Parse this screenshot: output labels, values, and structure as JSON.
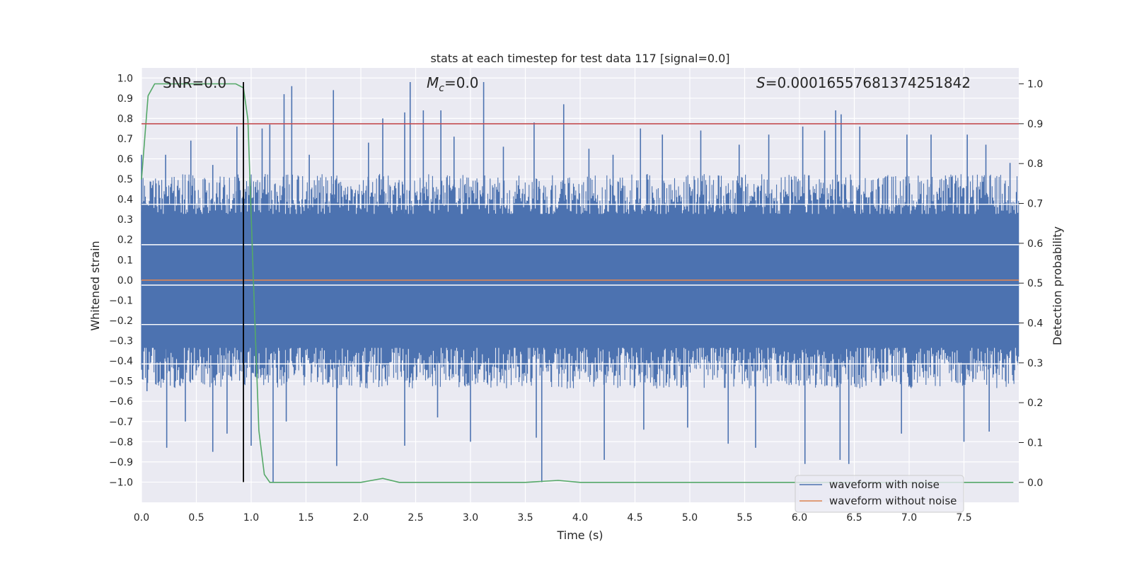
{
  "chart_data": {
    "type": "line",
    "title": "stats at each timestep for test data 117 [signal=0.0]",
    "xlabel": "Time (s)",
    "ylabel": "Whitened strain",
    "y2label": "Detection probability",
    "xlim": [
      0.0,
      8.0
    ],
    "ylim": [
      -1.1,
      1.05
    ],
    "y2lim": [
      -0.05,
      1.04
    ],
    "xticks": [
      0.0,
      0.5,
      1.0,
      1.5,
      2.0,
      2.5,
      3.0,
      3.5,
      4.0,
      4.5,
      5.0,
      5.5,
      6.0,
      6.5,
      7.0,
      7.5
    ],
    "xtick_labels": [
      "0.0",
      "0.5",
      "1.0",
      "1.5",
      "2.0",
      "2.5",
      "3.0",
      "3.5",
      "4.0",
      "4.5",
      "5.0",
      "5.5",
      "6.0",
      "6.5",
      "7.0",
      "7.5"
    ],
    "yticks": [
      1.0,
      0.9,
      0.8,
      0.7,
      0.6,
      0.5,
      0.4,
      0.3,
      0.2,
      0.1,
      0.0,
      -0.1,
      -0.2,
      -0.3,
      -0.4,
      -0.5,
      -0.6,
      -0.7,
      -0.8,
      -0.9,
      -1.0
    ],
    "ytick_labels": [
      "1.0",
      "0.9",
      "0.8",
      "0.7",
      "0.6",
      "0.5",
      "0.4",
      "0.3",
      "0.2",
      "0.1",
      "0.0",
      "−0.1",
      "−0.2",
      "−0.3",
      "−0.4",
      "−0.5",
      "−0.6",
      "−0.7",
      "−0.8",
      "−0.9",
      "−1.0"
    ],
    "y2ticks": [
      1.0,
      0.9,
      0.8,
      0.7,
      0.6,
      0.5,
      0.4,
      0.3,
      0.2,
      0.1,
      0.0
    ],
    "y2tick_labels": [
      "1.0",
      "0.9",
      "0.8",
      "0.7",
      "0.6",
      "0.5",
      "0.4",
      "0.3",
      "0.2",
      "0.1",
      "0.0"
    ],
    "annotations": {
      "snr": "SNR=0.0",
      "mc_symbol": "M",
      "mc_sub": "c",
      "mc_value": "=0.0",
      "s_symbol": "S",
      "s_value": "=0.00016557681374251842"
    },
    "series": [
      {
        "name": "waveform with noise",
        "color": "#4c72b0",
        "axis": "left",
        "envelope": {
          "upper_typical": 0.42,
          "lower_typical": -0.43,
          "upper_peaks": [
            [
              0.0,
              0.62
            ],
            [
              0.1,
              0.45
            ],
            [
              0.22,
              0.62
            ],
            [
              0.45,
              0.69
            ],
            [
              0.65,
              0.57
            ],
            [
              0.87,
              0.76
            ],
            [
              1.1,
              0.75
            ],
            [
              1.17,
              0.77
            ],
            [
              1.3,
              0.92
            ],
            [
              1.37,
              0.96
            ],
            [
              1.53,
              0.62
            ],
            [
              1.75,
              0.94
            ],
            [
              2.07,
              0.68
            ],
            [
              2.2,
              0.8
            ],
            [
              2.4,
              0.83
            ],
            [
              2.45,
              0.98
            ],
            [
              2.57,
              0.84
            ],
            [
              2.73,
              0.84
            ],
            [
              2.85,
              0.71
            ],
            [
              3.12,
              0.98
            ],
            [
              3.3,
              0.66
            ],
            [
              3.58,
              0.78
            ],
            [
              3.85,
              0.87
            ],
            [
              4.08,
              0.65
            ],
            [
              4.3,
              0.62
            ],
            [
              4.55,
              0.75
            ],
            [
              4.75,
              0.72
            ],
            [
              5.1,
              0.74
            ],
            [
              5.45,
              0.67
            ],
            [
              5.72,
              0.72
            ],
            [
              6.03,
              0.76
            ],
            [
              6.23,
              0.74
            ],
            [
              6.33,
              0.84
            ],
            [
              6.38,
              0.82
            ],
            [
              6.55,
              0.76
            ],
            [
              6.98,
              0.72
            ],
            [
              7.2,
              0.72
            ],
            [
              7.53,
              0.72
            ],
            [
              7.7,
              0.67
            ],
            [
              7.92,
              0.58
            ]
          ],
          "lower_peaks": [
            [
              0.05,
              -0.55
            ],
            [
              0.23,
              -0.83
            ],
            [
              0.4,
              -0.7
            ],
            [
              0.65,
              -0.85
            ],
            [
              0.78,
              -0.76
            ],
            [
              1.0,
              -0.82
            ],
            [
              1.2,
              -1.0
            ],
            [
              1.32,
              -0.7
            ],
            [
              1.78,
              -0.92
            ],
            [
              2.4,
              -0.82
            ],
            [
              2.7,
              -0.68
            ],
            [
              3.0,
              -0.8
            ],
            [
              3.6,
              -0.78
            ],
            [
              3.65,
              -1.0
            ],
            [
              4.22,
              -0.89
            ],
            [
              4.58,
              -0.74
            ],
            [
              4.98,
              -0.73
            ],
            [
              5.35,
              -0.81
            ],
            [
              5.6,
              -0.83
            ],
            [
              6.05,
              -0.91
            ],
            [
              6.37,
              -0.89
            ],
            [
              6.45,
              -0.91
            ],
            [
              6.93,
              -0.76
            ],
            [
              7.5,
              -0.8
            ],
            [
              7.73,
              -0.75
            ]
          ],
          "white_gaps": [
            0.375,
            0.175,
            -0.025,
            -0.22,
            -0.415
          ]
        }
      },
      {
        "name": "waveform without noise",
        "color": "#dd8452",
        "axis": "left",
        "x": [
          0.0,
          8.0
        ],
        "y": [
          0.0,
          0.0
        ]
      },
      {
        "name": "detection probability",
        "color": "#55a868",
        "axis": "right",
        "x": [
          0.0,
          0.06,
          0.12,
          0.5,
          0.86,
          0.93,
          0.97,
          1.02,
          1.07,
          1.12,
          1.17,
          1.23,
          1.5,
          2.0,
          2.1,
          2.2,
          2.35,
          3.0,
          3.5,
          3.8,
          4.0,
          5.0,
          6.0,
          7.0,
          7.95
        ],
        "y": [
          0.76,
          0.97,
          1.0,
          1.0,
          1.0,
          0.99,
          0.91,
          0.51,
          0.13,
          0.02,
          0.0,
          0.0,
          0.0,
          0.0,
          0.005,
          0.01,
          0.0,
          0.0,
          0.0,
          0.005,
          0.0,
          0.0,
          0.0,
          0.0,
          0.0
        ]
      },
      {
        "name": "detection threshold",
        "color": "#c44e52",
        "axis": "right",
        "x": [
          0.0,
          8.0
        ],
        "y": [
          0.9,
          0.9
        ]
      },
      {
        "name": "detection marker",
        "color": "#000000",
        "axis": "left",
        "x": [
          0.93,
          0.93
        ],
        "y": [
          -1.0,
          0.98
        ]
      }
    ],
    "legend": {
      "placement": "lower-right",
      "entries": [
        {
          "label": "waveform with noise",
          "color": "#4c72b0"
        },
        {
          "label": "waveform without noise",
          "color": "#dd8452"
        }
      ]
    },
    "grid": true,
    "background": "#eaeaf2"
  }
}
